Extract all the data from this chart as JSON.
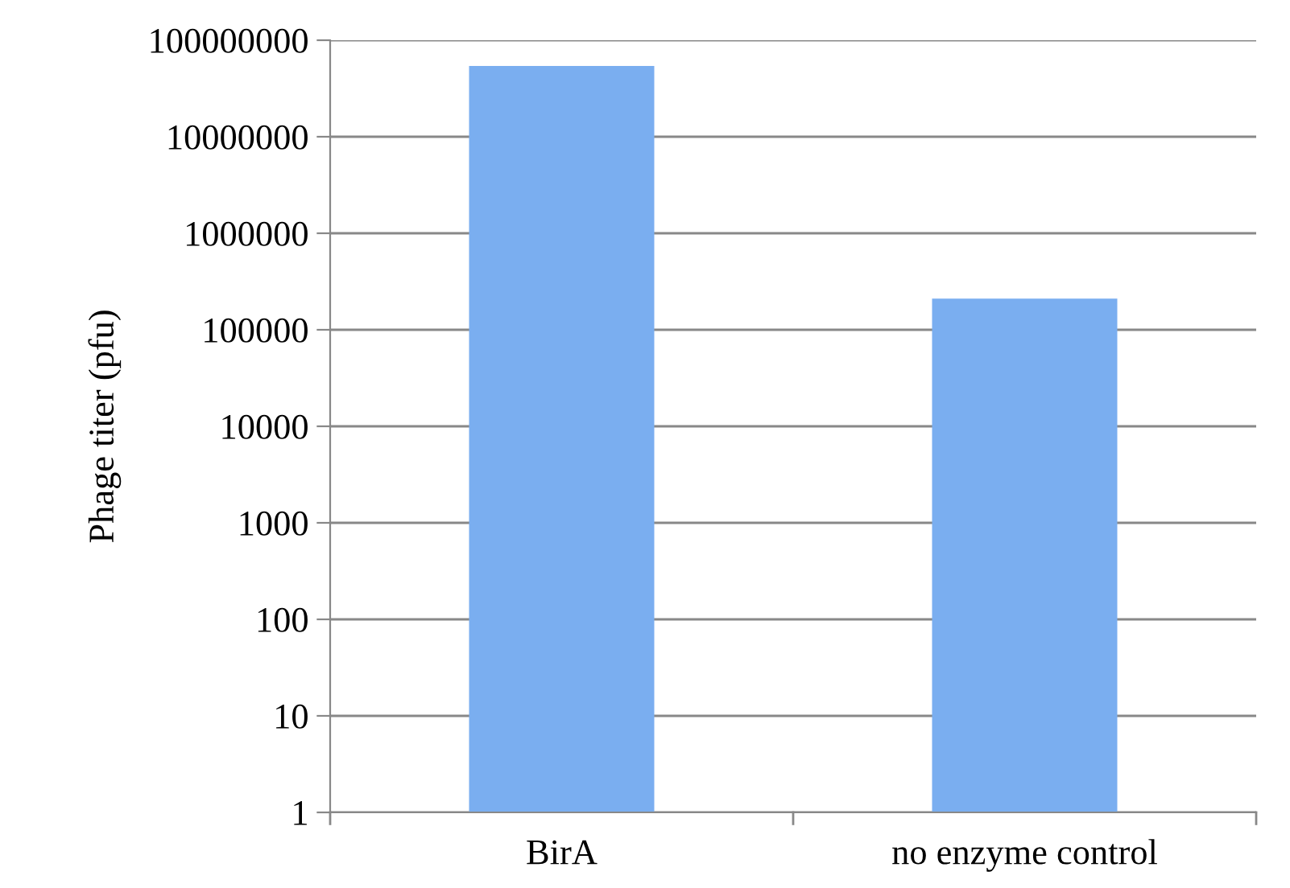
{
  "chart_data": {
    "type": "bar",
    "ylabel": "Phage titer (pfu)",
    "categories": [
      "BirA",
      "no enzyme control"
    ],
    "values": [
      54000000,
      210000
    ],
    "color": "#7aaef0",
    "log": true,
    "ylim": [
      1,
      100000000
    ],
    "yticks": [
      1,
      10,
      100,
      1000,
      10000,
      100000,
      1000000,
      10000000,
      100000000
    ],
    "grid": "y"
  }
}
